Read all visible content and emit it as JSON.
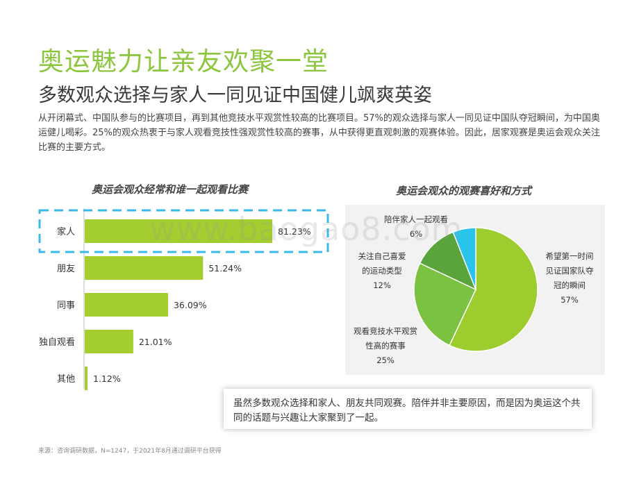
{
  "header": {
    "title": "奥运魅力让亲友欢聚一堂",
    "subtitle": "多数观众选择与家人一同见证中国健儿飒爽英姿",
    "intro": "从开闭幕式、中国队参与的比赛项目，再到其他竞技水平观赏性较高的比赛项目。57%的观众选择与家人一同见证中国队夺冠瞬间，为中国奥运健儿喝彩。25%的观众热衷于与家人观看竞技性强观赏性较高的赛事，从中获得更直观刺激的观赛体验。因此，居家观赛是奥运会观众关注比赛的主要方式。"
  },
  "watermark": "www.baogao8.com",
  "callout": "虽然多数观众选择和家人、朋友共同观赛。陪伴并非主要原因，而是因为奥运这个共同的话题与兴趣让大家聚到了一起。",
  "footer": {
    "source": "来源：咨询调研数据，N=1247，于2021年8月通过调研平台获得"
  },
  "colors": {
    "title_green": "#8cc63f",
    "bar_green": "#a4cd2f",
    "highlight_dash": "#3ab8e8"
  },
  "chart_data": [
    {
      "type": "bar",
      "orientation": "horizontal",
      "title": "奥运会观众经常和谁一起观看比赛",
      "categories": [
        "家人",
        "朋友",
        "同事",
        "独自观看",
        "其他"
      ],
      "values": [
        81.23,
        51.24,
        36.09,
        21.01,
        1.12
      ],
      "value_labels": [
        "81.23%",
        "51.24%",
        "36.09%",
        "21.01%",
        "1.12%"
      ],
      "unit": "%",
      "highlighted_category": "家人",
      "color": "#a4cd2f",
      "grid": false
    },
    {
      "type": "pie",
      "title": "奥运会观众的观赛喜好和方式",
      "slices": [
        {
          "label_lines": [
            "希望第一时间",
            "见证国家队夺",
            "冠的瞬间"
          ],
          "value": 57,
          "value_label": "57%",
          "color": "#9dcc2e"
        },
        {
          "label_lines": [
            "观看竞技水平观赏",
            "性高的赛事"
          ],
          "value": 25,
          "value_label": "25%",
          "color": "#7cc242"
        },
        {
          "label_lines": [
            "关注自己喜爱",
            "的运动类型"
          ],
          "value": 12,
          "value_label": "12%",
          "color": "#5aa43c"
        },
        {
          "label_lines": [
            "陪伴家人一起观看"
          ],
          "value": 6,
          "value_label": "6%",
          "color": "#29c4ec"
        }
      ]
    }
  ]
}
